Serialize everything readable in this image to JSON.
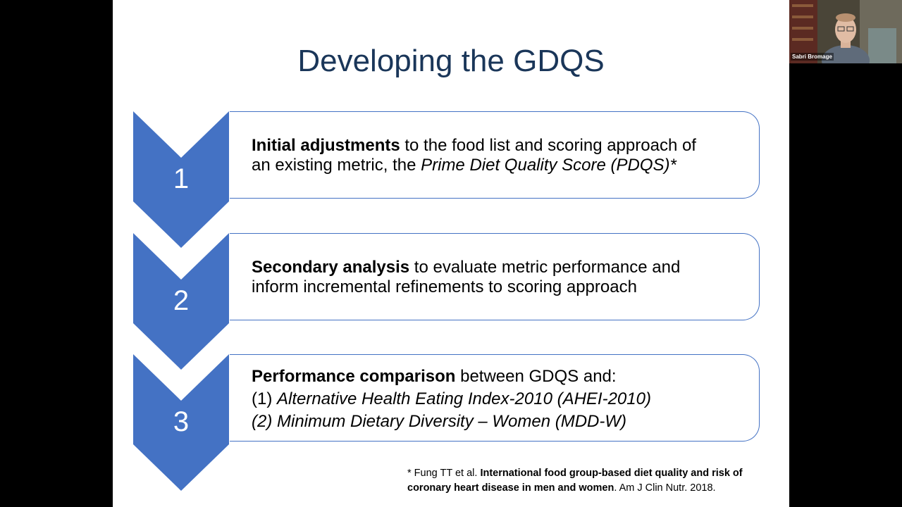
{
  "slide": {
    "title": "Developing the GDQS",
    "steps": [
      {
        "number": "1",
        "bold": "Initial adjustments",
        "rest_line1": " to the food list and scoring approach of",
        "line2_plain": "an existing metric, the ",
        "line2_italic": "Prime Diet Quality Score (PDQS)*"
      },
      {
        "number": "2",
        "bold": "Secondary analysis",
        "rest_line1": " to evaluate metric performance and",
        "line2_plain": "inform incremental refinements to scoring approach"
      },
      {
        "number": "3",
        "bold": "Performance comparison",
        "rest_line1": " between GDQS and:",
        "line2_plain": "(1) ",
        "line2_italic": "Alternative Health Eating Index-2010 (AHEI-2010)",
        "line3_italic": "(2) Minimum Dietary Diversity – Women (MDD-W)"
      }
    ],
    "footnote": {
      "prefix": "* Fung TT et al. ",
      "bold": "International food group-based diet quality and risk of coronary heart disease in men and women",
      "suffix": ". Am J Clin Nutr. 2018."
    }
  },
  "video": {
    "participant_name": "Sabri Bromage"
  },
  "colors": {
    "accent": "#4472c4",
    "title": "#1a3659"
  }
}
